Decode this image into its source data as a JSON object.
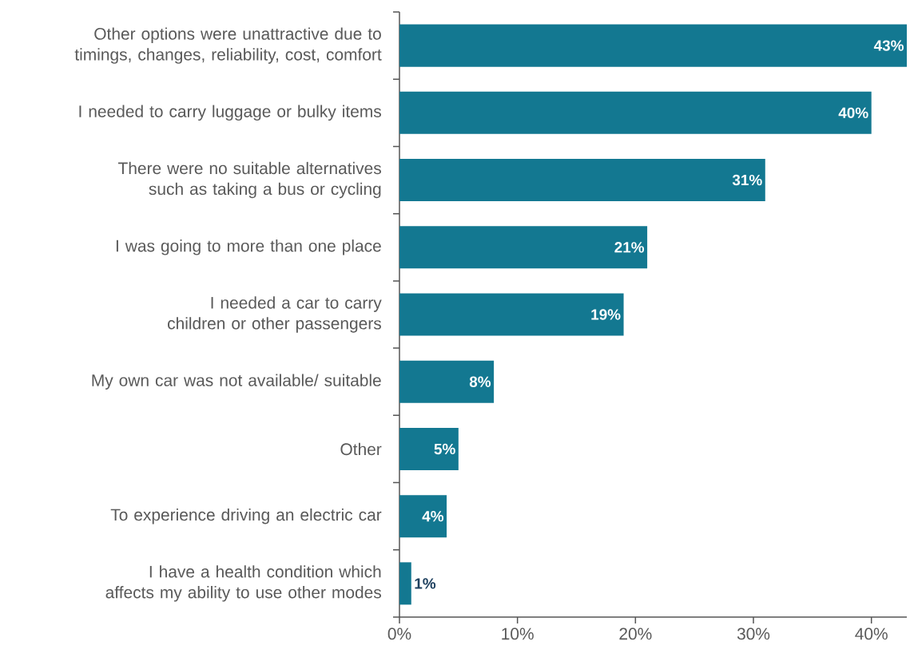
{
  "chart_data": {
    "type": "bar",
    "orientation": "horizontal",
    "categories": [
      "Other options were unattractive due to timings, changes, reliability, cost, comfort",
      "I needed to carry luggage or bulky items",
      "There were no suitable alternatives such as taking a bus or cycling",
      "I was going to more than one place",
      "I needed a car to carry children or other passengers",
      "My own car was not available/ suitable",
      "Other",
      "To experience driving an electric car",
      "I have a health condition which affects my ability to use other modes"
    ],
    "values": [
      43,
      40,
      31,
      21,
      19,
      8,
      5,
      4,
      1
    ],
    "value_labels": [
      "43%",
      "40%",
      "31%",
      "21%",
      "19%",
      "8%",
      "5%",
      "4%",
      "1%"
    ],
    "color": "#137891",
    "xlim": [
      0,
      43
    ],
    "xticks": [
      {
        "value": 0,
        "label": "0%"
      },
      {
        "value": 10,
        "label": "10%"
      },
      {
        "value": 20,
        "label": "20%"
      },
      {
        "value": 30,
        "label": "30%"
      },
      {
        "value": 40,
        "label": "40%"
      }
    ],
    "grid": false
  }
}
